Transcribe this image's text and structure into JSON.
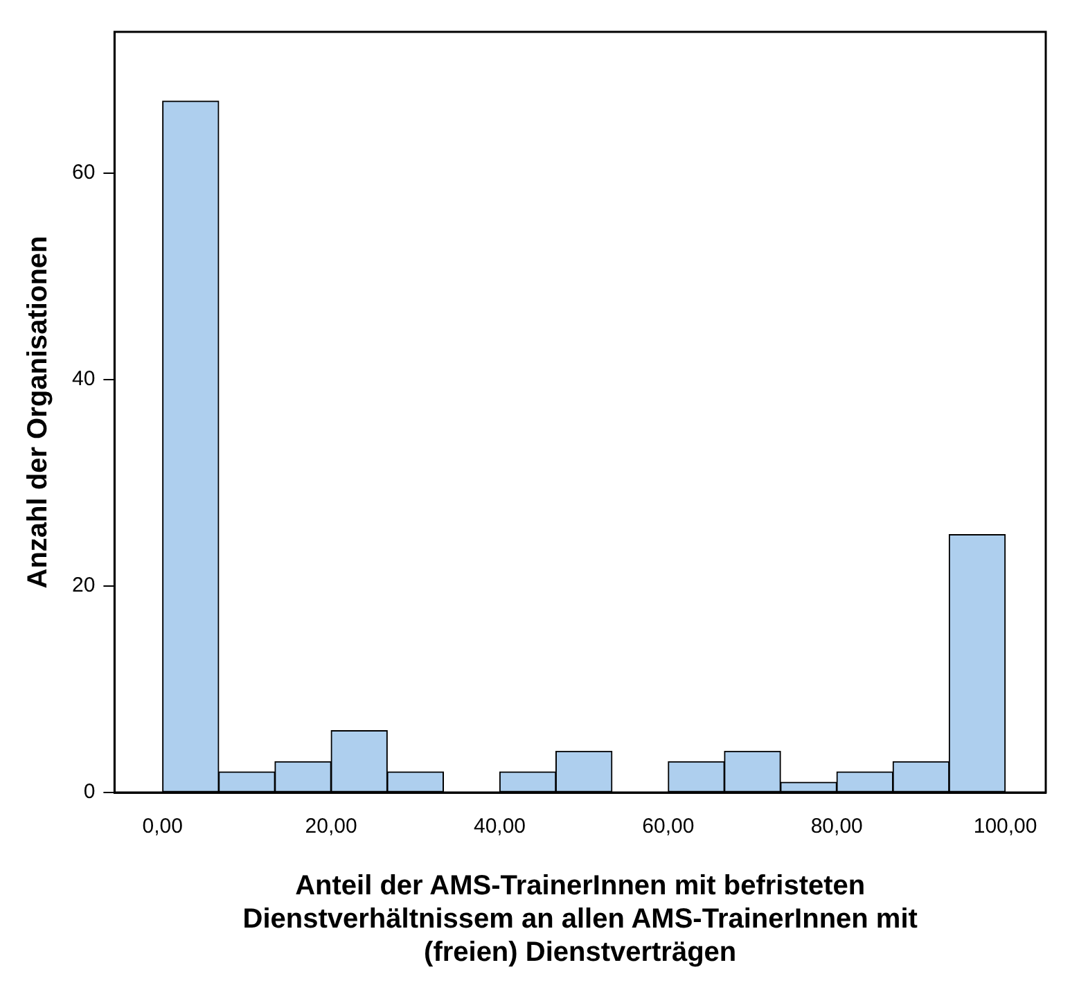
{
  "chart_data": {
    "type": "histogram",
    "xlabel": "Anteil der AMS-TrainerInnen mit befristeten Dienstverhältnissem an allen AMS-TrainerInnen mit (freien) Dienstverträgen",
    "ylabel": "Anzahl der Organisationen",
    "bins": [
      0,
      6.67,
      13.33,
      20,
      26.67,
      33.33,
      40,
      46.67,
      53.33,
      60,
      66.67,
      73.33,
      80,
      86.67,
      93.33,
      100
    ],
    "values": [
      67,
      2,
      3,
      6,
      2,
      0,
      2,
      4,
      0,
      3,
      4,
      1,
      2,
      3,
      25
    ],
    "color": "#aecfee",
    "xlim": [
      -5.7,
      104.8
    ],
    "ylim": [
      0,
      73.7
    ],
    "xticks": [
      {
        "value": 0,
        "label": "0,00"
      },
      {
        "value": 20,
        "label": "20,00"
      },
      {
        "value": 40,
        "label": "40,00"
      },
      {
        "value": 60,
        "label": "60,00"
      },
      {
        "value": 80,
        "label": "80,00"
      },
      {
        "value": 100,
        "label": "100,00"
      }
    ],
    "yticks": [
      0,
      20,
      40,
      60
    ],
    "grid": false,
    "legend": false
  }
}
